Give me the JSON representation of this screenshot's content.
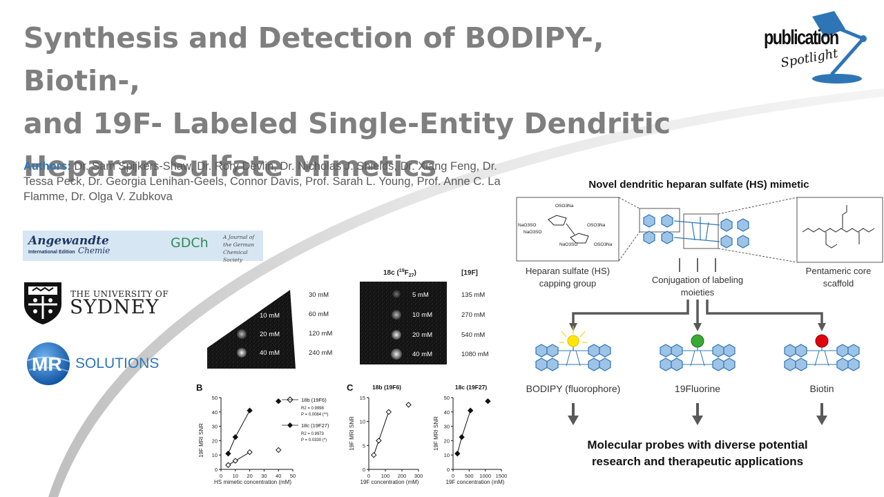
{
  "title_lines": [
    "Synthesis and Detection of BODIPY-, Biotin-,",
    "and 19F- Labeled Single-Entity Dendritic",
    "Heparan Sulfate Mimetics"
  ],
  "authors": {
    "label": "Authors:",
    "names": "Dr. Sam Spijkers-Shaw, Dr. Rory Devlin, Dr. Nicholas J. Shields, Dr. Xiang Feng, Dr. Tessa Peck, Dr. Georgia Lenihan-Geels, Connor Davis, Prof. Sarah L. Young, Prof. Anne C. La Flamme, Dr. Olga V. Zubkova"
  },
  "logos": {
    "publication": {
      "word": "publication",
      "sub": "Spotlight",
      "icon": "desk-lamp-icon",
      "color": "#2e75b6"
    },
    "angewandte": {
      "name": "Angewandte",
      "edition": "International Edition",
      "chemie": "Chemie",
      "gdch": "GDCh",
      "gdch_note": "A Journal of the German Chemical Society"
    },
    "usyd": {
      "top": "THE UNIVERSITY OF",
      "main": "SYDNEY"
    },
    "mr": {
      "mr": "MR",
      "solutions": "SOLUTIONS"
    }
  },
  "mri_panel": {
    "left_conc": [
      "30 mM",
      "60 mM",
      "120 mM",
      "240 mM"
    ],
    "left_image_labels": [
      "10 mM",
      "20 mM",
      "40 mM"
    ],
    "right_header": "18c (19F27)",
    "right_header_main": "18c (",
    "right_header_sup": "19",
    "right_header_f": "F",
    "right_header_sub": "27",
    "right_header_close": ")",
    "f_header": "[19F]",
    "right_image_labels": [
      "5 mM",
      "10 mM",
      "20 mM",
      "40 mM"
    ],
    "right_conc": [
      "135 mM",
      "270 mM",
      "540 mM",
      "1080 mM"
    ]
  },
  "chart_data": [
    {
      "type": "scatter",
      "panel_label": "B",
      "xlabel": "HS mimetic concentration (mM)",
      "ylabel": "19F MRI SNR",
      "xlim": [
        0,
        50
      ],
      "ylim": [
        0,
        50
      ],
      "x_ticks": [
        0,
        10,
        20,
        30,
        40,
        50
      ],
      "y_ticks": [
        0,
        10,
        20,
        30,
        40,
        50
      ],
      "series": [
        {
          "name": "18b (19F6)",
          "marker": "open-diamond",
          "points": [
            [
              5,
              3
            ],
            [
              10,
              6
            ],
            [
              20,
              12
            ],
            [
              40,
              13.5
            ]
          ],
          "fit_to_index": 2
        },
        {
          "name": "18c (19F27)",
          "marker": "filled-diamond",
          "points": [
            [
              5,
              11
            ],
            [
              10,
              22.5
            ],
            [
              20,
              41
            ],
            [
              40,
              47.5
            ]
          ],
          "fit_to_index": 2
        }
      ],
      "legend": [
        {
          "name": "18b (19F6)",
          "stats": [
            "R2 = 0.9998",
            "P = 0.0084 (**)"
          ]
        },
        {
          "name": "18c (19F27)",
          "stats": [
            "R2 = 0.9973",
            "P = 0.0330 (*)"
          ]
        }
      ]
    },
    {
      "type": "scatter",
      "panel_label": "C",
      "title": "18b (19F6)",
      "xlabel": "19F concentration (mM)",
      "ylabel": "19F MRI SNR",
      "xlim": [
        0,
        300
      ],
      "ylim": [
        0,
        15
      ],
      "x_ticks": [
        0,
        100,
        200,
        300
      ],
      "y_ticks": [
        0,
        5,
        10,
        15
      ],
      "series": [
        {
          "name": "18b",
          "marker": "open-diamond",
          "points": [
            [
              30,
              3
            ],
            [
              60,
              6
            ],
            [
              120,
              12
            ],
            [
              240,
              13.5
            ]
          ],
          "fit_to_index": 2
        }
      ]
    },
    {
      "type": "scatter",
      "title": "18c (19F27)",
      "xlabel": "19F concentration (mM)",
      "ylabel": "19F MRI SNR",
      "xlim": [
        0,
        1500
      ],
      "ylim": [
        0,
        50
      ],
      "x_ticks": [
        0,
        500,
        1000,
        1500
      ],
      "y_ticks": [
        0,
        10,
        20,
        30,
        40,
        50
      ],
      "series": [
        {
          "name": "18c",
          "marker": "filled-diamond",
          "points": [
            [
              135,
              11
            ],
            [
              270,
              22.5
            ],
            [
              540,
              41
            ],
            [
              1080,
              47.5
            ]
          ],
          "fit_to_index": 2
        }
      ]
    }
  ],
  "schematic": {
    "title": "Novel dendritic heparan sulfate (HS) mimetic",
    "hs_label": [
      "Heparan sulfate (HS)",
      "capping group"
    ],
    "conjugation_label": [
      "Conjugation of labeling",
      "moieties"
    ],
    "core_label": [
      "Pentameric core",
      "scaffold"
    ],
    "chem_labels": [
      "OSO3Na",
      "NaO3SO",
      "NaO3SO",
      "OSO3Na",
      "NaO3SO",
      "OSO3Na"
    ],
    "probes": [
      {
        "label": "BODIPY (fluorophore)",
        "color": "#ffe600"
      },
      {
        "label": "19Fluorine",
        "color": "#3aa935"
      },
      {
        "label": "Biotin",
        "color": "#e3000f"
      }
    ],
    "footer": [
      "Molecular probes with diverse potential",
      "research and therapeutic applications"
    ]
  }
}
